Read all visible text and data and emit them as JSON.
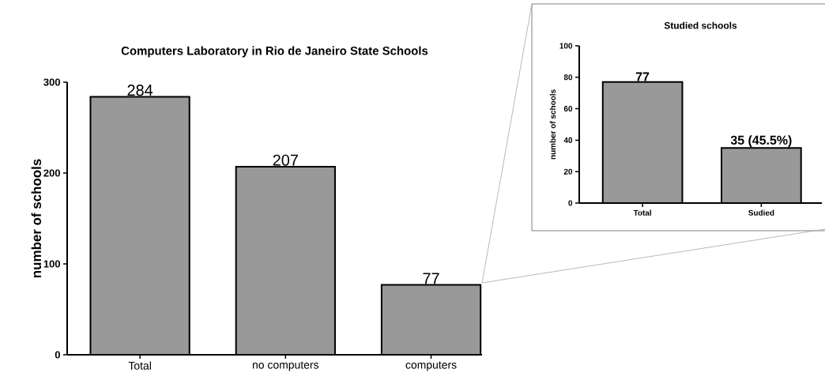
{
  "chart_data": [
    {
      "type": "bar",
      "title": "Computers Laboratory in Rio de Janeiro State Schools",
      "ylabel": "number of schools",
      "categories": [
        "Total",
        "no computers",
        "computers"
      ],
      "values": [
        284,
        207,
        77
      ],
      "color": "#999999",
      "ylim": [
        0,
        300
      ],
      "yticks": [
        0,
        100,
        200,
        300
      ],
      "data_labels": true
    },
    {
      "type": "bar",
      "title": "Studied schools",
      "ylabel": "number of schools",
      "categories": [
        "Total",
        "Sudied"
      ],
      "values": [
        77,
        35
      ],
      "value_labels": [
        "77",
        "35 (45.5%)"
      ],
      "color": "#999999",
      "ylim": [
        0,
        100
      ],
      "yticks": [
        0,
        20,
        40,
        60,
        80,
        100
      ]
    }
  ]
}
